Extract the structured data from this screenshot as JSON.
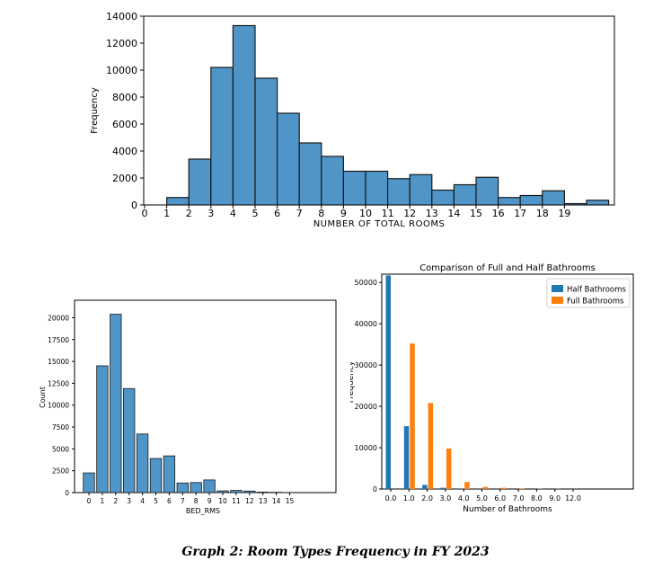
{
  "caption": "Graph 2: Room Types Frequency in FY 2023",
  "chart_data": [
    {
      "type": "bar",
      "title": "",
      "xlabel": "NUMBER OF TOTAL ROOMS",
      "ylabel": "Frequency",
      "x_ticks": [
        "0",
        "1",
        "2",
        "3",
        "4",
        "5",
        "6",
        "7",
        "8",
        "9",
        "10",
        "11",
        "12",
        "13",
        "14",
        "15",
        "16",
        "17",
        "18",
        "19"
      ],
      "y_ticks": [
        "0",
        "2000",
        "4000",
        "6000",
        "8000",
        "10000",
        "12000",
        "14000"
      ],
      "ylim": [
        0,
        14000
      ],
      "bins": [
        {
          "from": 1,
          "to": 2,
          "value": 550
        },
        {
          "from": 2,
          "to": 3,
          "value": 3400
        },
        {
          "from": 3,
          "to": 4,
          "value": 10200
        },
        {
          "from": 4,
          "to": 5,
          "value": 13300
        },
        {
          "from": 5,
          "to": 6,
          "value": 9400
        },
        {
          "from": 6,
          "to": 7,
          "value": 6800
        },
        {
          "from": 7,
          "to": 8,
          "value": 4600
        },
        {
          "from": 8,
          "to": 9,
          "value": 3600
        },
        {
          "from": 9,
          "to": 10,
          "value": 2500
        },
        {
          "from": 10,
          "to": 11,
          "value": 2500
        },
        {
          "from": 11,
          "to": 12,
          "value": 1950
        },
        {
          "from": 12,
          "to": 13,
          "value": 2250
        },
        {
          "from": 13,
          "to": 14,
          "value": 1100
        },
        {
          "from": 14,
          "to": 15,
          "value": 1500
        },
        {
          "from": 15,
          "to": 16,
          "value": 2050
        },
        {
          "from": 16,
          "to": 17,
          "value": 550
        },
        {
          "from": 17,
          "to": 18,
          "value": 700
        },
        {
          "from": 18,
          "to": 19,
          "value": 1050
        },
        {
          "from": 19,
          "to": 20,
          "value": 100
        },
        {
          "from": 20,
          "to": 21,
          "value": 350
        }
      ],
      "color": "#4f95c8"
    },
    {
      "type": "bar",
      "title": "",
      "xlabel": "BED_RMS",
      "ylabel": "Count",
      "categories": [
        "0",
        "1",
        "2",
        "3",
        "4",
        "5",
        "6",
        "7",
        "8",
        "9",
        "10",
        "11",
        "12",
        "13",
        "14",
        "15"
      ],
      "values": [
        2250,
        14500,
        20400,
        11900,
        6700,
        3900,
        4200,
        1100,
        1150,
        1450,
        200,
        250,
        180,
        60,
        40,
        20
      ],
      "y_ticks": [
        "0",
        "2500",
        "5000",
        "7500",
        "10000",
        "12500",
        "15000",
        "17500",
        "20000"
      ],
      "ylim": [
        0,
        22000
      ],
      "color": "#4f95c8"
    },
    {
      "type": "bar",
      "title": "Comparison of Full and Half Bathrooms",
      "xlabel": "Number of Bathrooms",
      "ylabel": "Frequency",
      "categories": [
        "0.0",
        "1.0",
        "2.0",
        "3.0",
        "4.0",
        "5.0",
        "6.0",
        "7.0",
        "8.0",
        "9.0",
        "12.0"
      ],
      "y_ticks": [
        "0",
        "10000",
        "20000",
        "30000",
        "40000",
        "50000"
      ],
      "ylim": [
        0,
        52000
      ],
      "legend_position": "top-right",
      "series": [
        {
          "name": "Half Bathrooms",
          "color": "#1f77b4",
          "values": [
            51700,
            15200,
            1000,
            300,
            30,
            10,
            5,
            0,
            0,
            0,
            0
          ]
        },
        {
          "name": "Full Bathrooms",
          "color": "#ff7f0e",
          "values": [
            0,
            35200,
            20800,
            9800,
            1700,
            500,
            300,
            150,
            60,
            40,
            10
          ]
        }
      ]
    }
  ]
}
